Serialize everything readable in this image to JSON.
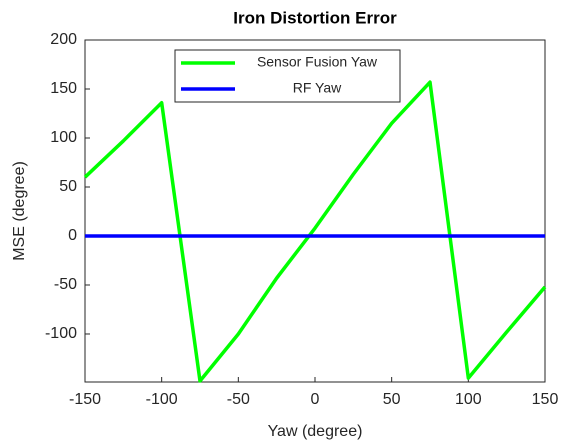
{
  "chart_data": {
    "type": "line",
    "title": "Iron Distortion Error",
    "xlabel": "Yaw (degree)",
    "ylabel": "MSE (degree)",
    "xlim": [
      -150,
      150
    ],
    "xticks": [
      -150,
      -100,
      -50,
      0,
      50,
      100,
      150
    ],
    "ylim": [
      -149,
      200
    ],
    "yticks": [
      -100,
      -50,
      0,
      50,
      100,
      150,
      200
    ],
    "legend_loc": "north",
    "series": [
      {
        "name": "Sensor Fusion Yaw",
        "color": "#00ff00",
        "x": [
          -150,
          -125,
          -100,
          -75,
          -50,
          -25,
          0,
          25,
          50,
          75,
          100,
          125,
          150
        ],
        "values": [
          60,
          97,
          136,
          -148,
          -100,
          -43,
          8,
          63,
          115,
          157,
          -145,
          -98,
          -52
        ]
      },
      {
        "name": "RF Yaw",
        "color": "#0000ff",
        "x": [
          -150,
          -100,
          -50,
          0,
          50,
          100,
          150
        ],
        "values": [
          0,
          0,
          0,
          0,
          0,
          0,
          0
        ]
      }
    ]
  }
}
